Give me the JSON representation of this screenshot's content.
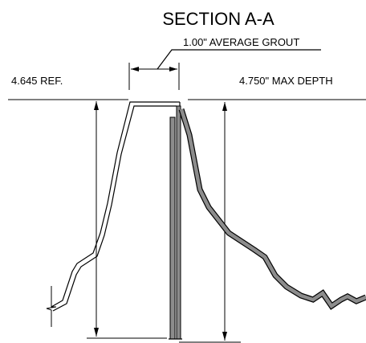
{
  "drawing": {
    "title": "SECTION A-A",
    "dimensions": {
      "grout": "1.00\" AVERAGE GROUT",
      "ref": "4.645 REF.",
      "max_depth": "4.750\" MAX DEPTH"
    }
  },
  "colors": {
    "line": "#000000",
    "fill_gray": "#8c8c8c",
    "background": "#ffffff"
  }
}
